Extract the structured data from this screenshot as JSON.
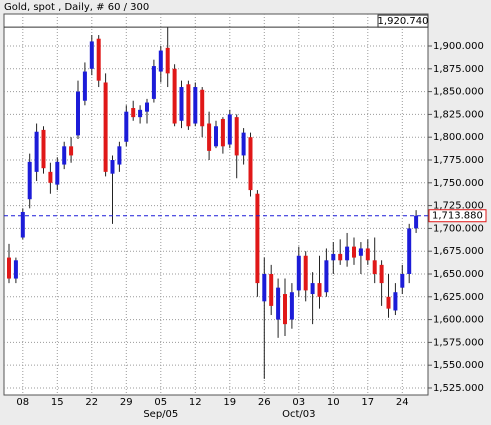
{
  "chart_data": {
    "type": "candlestick",
    "title": "Gold, spot , Daily, # 60 / 300",
    "categories": [
      null,
      null,
      "08",
      null,
      null,
      null,
      null,
      "15",
      null,
      null,
      null,
      null,
      "22",
      null,
      null,
      null,
      null,
      "29",
      null,
      null,
      null,
      null,
      "05",
      null,
      null,
      null,
      null,
      "12",
      null,
      null,
      null,
      null,
      "19",
      null,
      null,
      null,
      null,
      "26",
      null,
      null,
      null,
      null,
      "03",
      null,
      null,
      null,
      null,
      "10",
      null,
      null,
      null,
      null,
      "17",
      null,
      null,
      null,
      null,
      "24",
      null,
      null
    ],
    "categories_2": [
      null,
      null,
      null,
      null,
      null,
      null,
      null,
      null,
      null,
      null,
      null,
      null,
      null,
      null,
      null,
      null,
      null,
      null,
      null,
      null,
      null,
      null,
      "Sep/05",
      null,
      null,
      null,
      null,
      null,
      null,
      null,
      null,
      null,
      null,
      null,
      null,
      null,
      null,
      null,
      null,
      null,
      null,
      null,
      "Oct/03",
      null,
      null,
      null,
      null,
      null,
      null,
      null,
      null,
      null,
      null,
      null,
      null,
      null,
      null,
      null,
      null,
      null
    ],
    "open": [
      1668,
      1645,
      1690,
      1732,
      1762,
      1808,
      1762,
      1748,
      1770,
      1790,
      1802,
      1840,
      1875,
      1908,
      1860,
      1760,
      1770,
      1795,
      1832,
      1822,
      1828,
      1842,
      1872,
      1898,
      1875,
      1818,
      1858,
      1815,
      1852,
      1815,
      1790,
      1820,
      1792,
      1822,
      1780,
      1800,
      1738,
      1620,
      1650,
      1600,
      1628,
      1600,
      1632,
      1670,
      1628,
      1640,
      1630,
      1665,
      1672,
      1665,
      1680,
      1670,
      1678,
      1665,
      1660,
      1625,
      1610,
      1635,
      1650,
      1700
    ],
    "high": [
      1683,
      1668,
      1722,
      1782,
      1815,
      1812,
      1772,
      1778,
      1795,
      1800,
      1862,
      1882,
      1912,
      1912,
      1870,
      1780,
      1795,
      1835,
      1840,
      1835,
      1842,
      1885,
      1900,
      1920.74,
      1880,
      1862,
      1862,
      1860,
      1855,
      1828,
      1818,
      1822,
      1830,
      1825,
      1810,
      1805,
      1742,
      1668,
      1660,
      1645,
      1645,
      1640,
      1680,
      1675,
      1652,
      1670,
      1678,
      1685,
      1688,
      1695,
      1690,
      1685,
      1688,
      1690,
      1665,
      1650,
      1640,
      1660,
      1705,
      1720
    ],
    "low": [
      1640,
      1640,
      1688,
      1722,
      1752,
      1760,
      1738,
      1742,
      1765,
      1772,
      1798,
      1835,
      1868,
      1855,
      1757,
      1705,
      1762,
      1790,
      1818,
      1815,
      1815,
      1838,
      1860,
      1855,
      1812,
      1810,
      1808,
      1812,
      1800,
      1775,
      1788,
      1782,
      1788,
      1755,
      1770,
      1735,
      1625,
      1535,
      1605,
      1580,
      1582,
      1590,
      1625,
      1620,
      1595,
      1612,
      1625,
      1650,
      1660,
      1658,
      1660,
      1650,
      1660,
      1640,
      1615,
      1602,
      1605,
      1628,
      1640,
      1695
    ],
    "close": [
      1645,
      1665,
      1718,
      1773,
      1806,
      1766,
      1750,
      1773,
      1790,
      1780,
      1850,
      1872,
      1905,
      1862,
      1762,
      1775,
      1790,
      1828,
      1822,
      1830,
      1838,
      1878,
      1895,
      1870,
      1815,
      1855,
      1812,
      1855,
      1812,
      1785,
      1812,
      1790,
      1825,
      1780,
      1805,
      1742,
      1640,
      1650,
      1615,
      1635,
      1595,
      1630,
      1670,
      1632,
      1640,
      1625,
      1665,
      1672,
      1665,
      1680,
      1668,
      1678,
      1665,
      1650,
      1640,
      1612,
      1630,
      1650,
      1700,
      1713.88
    ],
    "up_color": "#1c1cd8",
    "down_color": "#e01818",
    "ylim": [
      1517.3,
      1935.1
    ],
    "yticks": [
      {
        "value": 1525,
        "label": "1,525.000"
      },
      {
        "value": 1550,
        "label": "1,550.000"
      },
      {
        "value": 1575,
        "label": "1,575.000"
      },
      {
        "value": 1600,
        "label": "1,600.000"
      },
      {
        "value": 1625,
        "label": "1,625.000"
      },
      {
        "value": 1650,
        "label": "1,650.000"
      },
      {
        "value": 1675,
        "label": "1,675.000"
      },
      {
        "value": 1700,
        "label": "1,700.000"
      },
      {
        "value": 1725,
        "label": "1,725.000"
      },
      {
        "value": 1750,
        "label": "1,750.000"
      },
      {
        "value": 1775,
        "label": "1,775.000"
      },
      {
        "value": 1800,
        "label": "1,800.000"
      },
      {
        "value": 1825,
        "label": "1,825.000"
      },
      {
        "value": 1850,
        "label": "1,850.000"
      },
      {
        "value": 1875,
        "label": "1,875.000"
      },
      {
        "value": 1900,
        "label": "1,900.000"
      }
    ],
    "max_price": {
      "value": 1920.74,
      "label": "1,920.740"
    },
    "last_price": {
      "value": 1713.88,
      "label": "1,713.880"
    },
    "grid": true
  }
}
